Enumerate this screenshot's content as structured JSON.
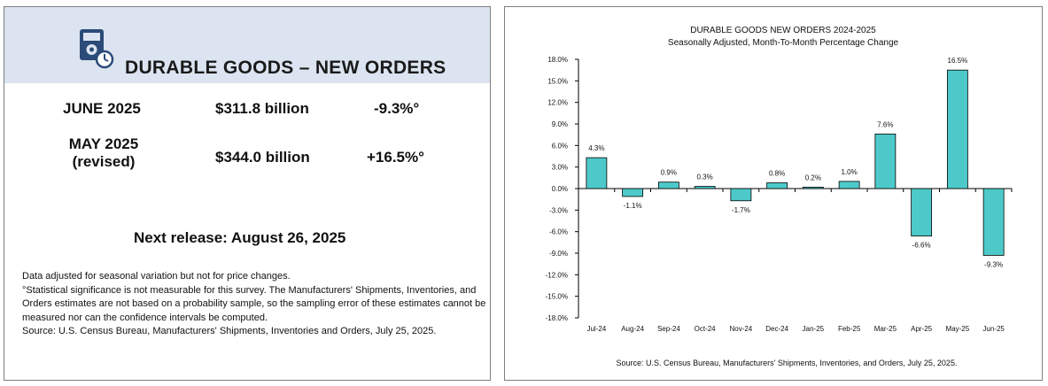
{
  "summary": {
    "title": "DURABLE GOODS – NEW ORDERS",
    "icon": "document-clock-icon",
    "banner_color": "#dbe4f0",
    "rows": [
      {
        "period": "JUNE 2025",
        "amount": "$311.8 billion",
        "change": "-9.3%°"
      },
      {
        "period_line1": "MAY 2025",
        "period_line2": "(revised)",
        "amount": "$344.0 billion",
        "change": "+16.5%°"
      }
    ],
    "next_release": "Next release:  August 26, 2025",
    "notes": [
      "Data adjusted for seasonal variation but not for price changes.",
      "°Statistical significance is not measurable for this survey.  The Manufacturers' Shipments, Inventories, and Orders estimates are not based on a probability sample, so the sampling error of these estimates cannot be measured nor can the confidence intervals be computed.",
      "Source: U.S. Census Bureau, Manufacturers' Shipments, Inventories and Orders, July 25, 2025."
    ]
  },
  "chart_data": {
    "type": "bar",
    "title": "DURABLE GOODS NEW ORDERS 2024-2025",
    "subtitle": "Seasonally Adjusted,  Month-To-Month Percentage Change",
    "categories": [
      "Jul-24",
      "Aug-24",
      "Sep-24",
      "Oct-24",
      "Nov-24",
      "Dec-24",
      "Jan-25",
      "Feb-25",
      "Mar-25",
      "Apr-25",
      "May-25",
      "Jun-25"
    ],
    "values": [
      4.3,
      -1.1,
      0.9,
      0.3,
      -1.7,
      0.8,
      0.2,
      1.0,
      7.6,
      -6.6,
      16.5,
      -9.3
    ],
    "data_labels": [
      "4.3%",
      "-1.1%",
      "0.9%",
      "0.3%",
      "-1.7%",
      "0.8%",
      "0.2%",
      "1.0%",
      "7.6%",
      "-6.6%",
      "16.5%",
      "-9.3%"
    ],
    "ylim": [
      -18,
      18
    ],
    "yticks": [
      18,
      15,
      12,
      9,
      6,
      3,
      0,
      -3,
      -6,
      -9,
      -12,
      -15,
      -18
    ],
    "ytick_labels": [
      "18.0%",
      "15.0%",
      "12.0%",
      "9.0%",
      "6.0%",
      "3.0%",
      "0.0%",
      "-3.0%",
      "-6.0%",
      "-9.0%",
      "-12.0%",
      "-15.0%",
      "-18.0%"
    ],
    "xlabel": "",
    "ylabel": "",
    "grid": false,
    "bar_color": "#4ec9c9",
    "source": "Source: U.S. Census Bureau, Manufacturers' Shipments, Inventories, and Orders, July 25, 2025."
  }
}
